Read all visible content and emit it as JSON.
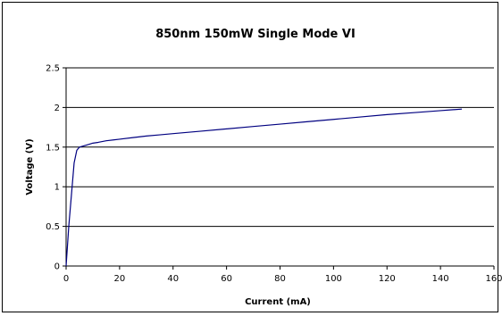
{
  "chart_data": {
    "type": "line",
    "title": "850nm 150mW Single Mode VI",
    "xlabel": "Current (mA)",
    "ylabel": "Voltage (V)",
    "xlim": [
      0,
      160
    ],
    "ylim": [
      0,
      2.5
    ],
    "x_ticks": [
      "0",
      "20",
      "40",
      "60",
      "80",
      "100",
      "120",
      "140",
      "160"
    ],
    "y_ticks": [
      "0",
      "0.5",
      "1",
      "1.5",
      "2",
      "2.5"
    ],
    "grid": "horizontal",
    "legend": "none",
    "series_color": "#000080",
    "series": [
      {
        "x": [
          0,
          0.5,
          1,
          2,
          3,
          4,
          5,
          6,
          8,
          10,
          12,
          15,
          20,
          25,
          30,
          35,
          40,
          50,
          60,
          70,
          80,
          90,
          100,
          110,
          120,
          130,
          140,
          148
        ],
        "y": [
          0,
          0.25,
          0.5,
          0.9,
          1.3,
          1.46,
          1.5,
          1.51,
          1.53,
          1.55,
          1.56,
          1.58,
          1.6,
          1.62,
          1.64,
          1.655,
          1.67,
          1.7,
          1.73,
          1.76,
          1.79,
          1.82,
          1.85,
          1.88,
          1.91,
          1.935,
          1.96,
          1.98
        ]
      }
    ]
  }
}
